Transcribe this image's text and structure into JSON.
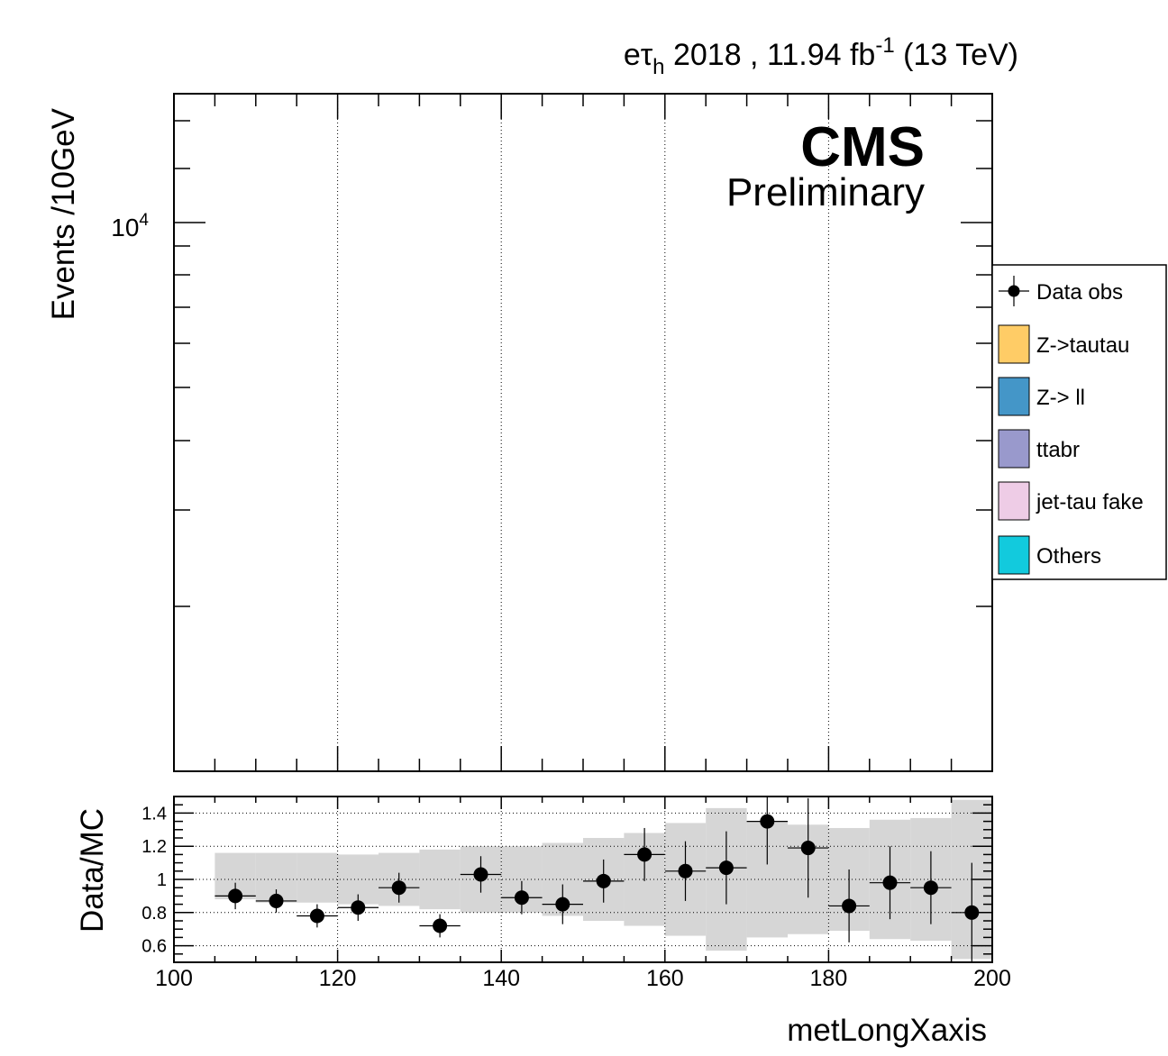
{
  "header": {
    "channel_e": "e",
    "channel_tau": "τ",
    "channel_sub": "h",
    "year_lumi": " 2018 , 11.94 fb",
    "lumi_exp": "-1",
    "energy": " (13 TeV)"
  },
  "cms_label": "CMS",
  "preliminary_label": "Preliminary",
  "legend": {
    "entries": [
      {
        "label": "Data obs",
        "kind": "marker",
        "color": "#000000"
      },
      {
        "label": "Z->tautau",
        "kind": "box",
        "color": "#ffcc66"
      },
      {
        "label": "Z-> ll",
        "kind": "box",
        "color": "#4496c8"
      },
      {
        "label": "ttabr",
        "kind": "box",
        "color": "#9999cc"
      },
      {
        "label": "jet-tau fake",
        "kind": "box",
        "color": "#eecce6"
      },
      {
        "label": "Others",
        "kind": "box",
        "color": "#12cadd"
      }
    ]
  },
  "chart_data": [
    {
      "type": "bar",
      "panel": "main",
      "ylabel": "Events /10GeV",
      "yscale": "log",
      "y_tick_labels": [
        {
          "base": "10",
          "exp": "4"
        }
      ],
      "xlim": [
        100,
        200
      ],
      "grid": "vertical dotted",
      "series": []
    },
    {
      "type": "scatter",
      "panel": "ratio",
      "xlabel": "metLongXaxis",
      "ylabel": "Data/MC",
      "xlim": [
        100,
        200
      ],
      "ylim": [
        0.5,
        1.5
      ],
      "x_ticks": [
        "100",
        "120",
        "140",
        "160",
        "180",
        "200"
      ],
      "y_ticks": [
        "0.6",
        "0.8",
        "1",
        "1.2",
        "1.4"
      ],
      "grid": "dotted",
      "points": {
        "x": [
          107.5,
          112.5,
          117.5,
          122.5,
          127.5,
          132.5,
          137.5,
          142.5,
          147.5,
          152.5,
          157.5,
          162.5,
          167.5,
          172.5,
          177.5,
          182.5,
          187.5,
          192.5,
          197.5
        ],
        "y": [
          0.9,
          0.87,
          0.78,
          0.83,
          0.95,
          0.72,
          1.03,
          0.89,
          0.85,
          0.99,
          1.15,
          1.05,
          1.07,
          1.35,
          1.19,
          0.84,
          0.98,
          0.95,
          0.8
        ],
        "yerr": [
          0.08,
          0.07,
          0.07,
          0.08,
          0.09,
          0.07,
          0.11,
          0.1,
          0.12,
          0.13,
          0.16,
          0.18,
          0.22,
          0.26,
          0.3,
          0.22,
          0.22,
          0.22,
          0.3
        ]
      },
      "uncertainty_band": {
        "x_low": [
          105,
          110,
          115,
          120,
          125,
          130,
          135,
          140,
          145,
          150,
          155,
          160,
          165,
          170,
          175,
          180,
          185,
          190,
          195
        ],
        "x_high": [
          110,
          115,
          120,
          125,
          130,
          135,
          140,
          145,
          150,
          155,
          160,
          165,
          170,
          175,
          180,
          185,
          190,
          195,
          200
        ],
        "low": [
          0.88,
          0.86,
          0.86,
          0.85,
          0.84,
          0.82,
          0.8,
          0.8,
          0.78,
          0.75,
          0.72,
          0.66,
          0.57,
          0.65,
          0.67,
          0.69,
          0.64,
          0.63,
          0.52
        ],
        "high": [
          1.16,
          1.16,
          1.16,
          1.15,
          1.16,
          1.18,
          1.2,
          1.2,
          1.22,
          1.25,
          1.28,
          1.34,
          1.43,
          1.35,
          1.33,
          1.31,
          1.36,
          1.37,
          1.48
        ]
      }
    }
  ]
}
